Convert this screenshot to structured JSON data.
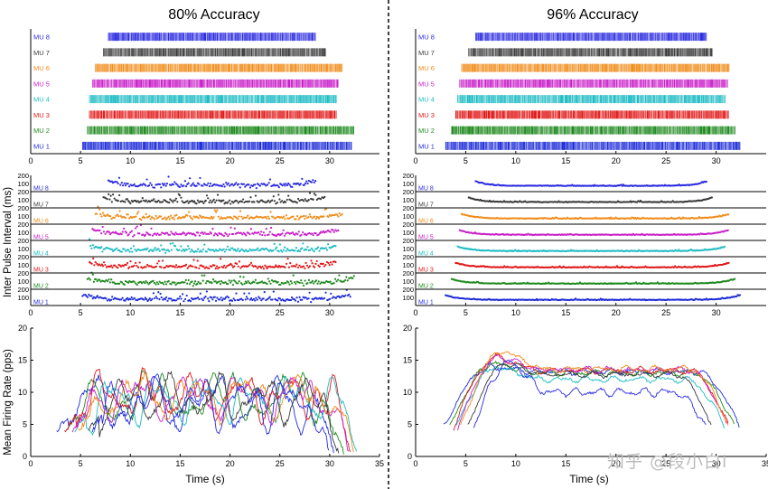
{
  "figure": {
    "divider_style": "dashed",
    "watermark": "知乎 @段小白i"
  },
  "colors": {
    "MU 1": "#1f2dd8",
    "MU 2": "#1f8a1f",
    "MU 3": "#e01818",
    "MU 4": "#1fbcc4",
    "MU 5": "#c81fc8",
    "MU 6": "#f08c1a",
    "MU 7": "#3a3a3a",
    "MU 8": "#2a2ae0"
  },
  "chart_data": [
    {
      "type": "raster",
      "panel": "left-top",
      "title": "80% Accuracy",
      "xlabel": "",
      "ylabel": "",
      "xlim": [
        0,
        35
      ],
      "xticks": [
        0,
        5,
        10,
        15,
        20,
        25,
        30
      ],
      "series": [
        {
          "name": "MU 1",
          "start": 5.2,
          "end": 32.2
        },
        {
          "name": "MU 2",
          "start": 5.7,
          "end": 32.5
        },
        {
          "name": "MU 3",
          "start": 5.9,
          "end": 30.7
        },
        {
          "name": "MU 4",
          "start": 5.9,
          "end": 30.7
        },
        {
          "name": "MU 5",
          "start": 6.2,
          "end": 30.9
        },
        {
          "name": "MU 6",
          "start": 6.5,
          "end": 31.3
        },
        {
          "name": "MU 7",
          "start": 7.3,
          "end": 29.6
        },
        {
          "name": "MU 8",
          "start": 7.8,
          "end": 28.6
        }
      ]
    },
    {
      "type": "raster",
      "panel": "right-top",
      "title": "96% Accuracy",
      "xlabel": "",
      "ylabel": "",
      "xlim": [
        0,
        35
      ],
      "xticks": [
        0,
        5,
        10,
        15,
        20,
        25,
        30
      ],
      "series": [
        {
          "name": "MU 1",
          "start": 3.0,
          "end": 32.4
        },
        {
          "name": "MU 2",
          "start": 3.6,
          "end": 31.9
        },
        {
          "name": "MU 3",
          "start": 4.0,
          "end": 31.3
        },
        {
          "name": "MU 4",
          "start": 4.2,
          "end": 30.9
        },
        {
          "name": "MU 5",
          "start": 4.4,
          "end": 31.2
        },
        {
          "name": "MU 6",
          "start": 4.6,
          "end": 31.3
        },
        {
          "name": "MU 7",
          "start": 5.3,
          "end": 29.6
        },
        {
          "name": "MU 8",
          "start": 6.0,
          "end": 29.1
        }
      ]
    },
    {
      "type": "scatter",
      "panel": "left-middle",
      "title": "",
      "xlabel": "",
      "ylabel": "Inter Pulse Interval (ms)",
      "xlim": [
        0,
        35
      ],
      "ylim_per_unit": [
        0,
        200
      ],
      "yticks_per_unit": [
        100,
        200
      ],
      "xticks": [
        0,
        5,
        10,
        15,
        20,
        25,
        30
      ],
      "series": [
        {
          "name": "MU 1",
          "start": 5.2,
          "end": 32.2,
          "baseline_ms": 80,
          "scatter_ms": 60
        },
        {
          "name": "MU 2",
          "start": 5.7,
          "end": 32.5,
          "baseline_ms": 80,
          "scatter_ms": 60
        },
        {
          "name": "MU 3",
          "start": 5.9,
          "end": 30.7,
          "baseline_ms": 80,
          "scatter_ms": 55
        },
        {
          "name": "MU 4",
          "start": 5.9,
          "end": 30.7,
          "baseline_ms": 80,
          "scatter_ms": 55
        },
        {
          "name": "MU 5",
          "start": 6.2,
          "end": 30.9,
          "baseline_ms": 80,
          "scatter_ms": 55
        },
        {
          "name": "MU 6",
          "start": 6.5,
          "end": 31.3,
          "baseline_ms": 80,
          "scatter_ms": 55
        },
        {
          "name": "MU 7",
          "start": 7.3,
          "end": 29.6,
          "baseline_ms": 80,
          "scatter_ms": 55
        },
        {
          "name": "MU 8",
          "start": 7.8,
          "end": 28.6,
          "baseline_ms": 80,
          "scatter_ms": 60
        }
      ]
    },
    {
      "type": "scatter",
      "panel": "right-middle",
      "title": "",
      "xlabel": "",
      "ylabel": "",
      "xlim": [
        0,
        35
      ],
      "ylim_per_unit": [
        0,
        200
      ],
      "yticks_per_unit": [
        100,
        200
      ],
      "xticks": [
        0,
        5,
        10,
        15,
        20,
        25,
        30
      ],
      "series": [
        {
          "name": "MU 1",
          "start": 3.0,
          "end": 32.4,
          "baseline_ms": 70,
          "scatter_ms": 8
        },
        {
          "name": "MU 2",
          "start": 3.6,
          "end": 31.9,
          "baseline_ms": 70,
          "scatter_ms": 8
        },
        {
          "name": "MU 3",
          "start": 4.0,
          "end": 31.3,
          "baseline_ms": 70,
          "scatter_ms": 8
        },
        {
          "name": "MU 4",
          "start": 4.2,
          "end": 30.9,
          "baseline_ms": 70,
          "scatter_ms": 8
        },
        {
          "name": "MU 5",
          "start": 4.4,
          "end": 31.2,
          "baseline_ms": 70,
          "scatter_ms": 8
        },
        {
          "name": "MU 6",
          "start": 4.6,
          "end": 31.3,
          "baseline_ms": 70,
          "scatter_ms": 8
        },
        {
          "name": "MU 7",
          "start": 5.3,
          "end": 29.6,
          "baseline_ms": 72,
          "scatter_ms": 8
        },
        {
          "name": "MU 8",
          "start": 6.0,
          "end": 29.1,
          "baseline_ms": 72,
          "scatter_ms": 8
        }
      ]
    },
    {
      "type": "line",
      "panel": "left-bottom",
      "title": "",
      "xlabel": "Time (s)",
      "ylabel": "Mean Firing Rate (pps)",
      "xlim": [
        0,
        35
      ],
      "ylim": [
        0,
        20
      ],
      "xticks": [
        0,
        5,
        10,
        15,
        20,
        25,
        30,
        35
      ],
      "yticks": [
        0,
        5,
        10,
        15,
        20
      ],
      "series": [
        {
          "name": "MU 1",
          "start": 2.6,
          "end": 30.5,
          "mean": 8.5,
          "fluctuation": 4.5
        },
        {
          "name": "MU 2",
          "start": 3.6,
          "end": 31.5,
          "mean": 9.0,
          "fluctuation": 4.5
        },
        {
          "name": "MU 3",
          "start": 3.4,
          "end": 32.2,
          "mean": 9.5,
          "fluctuation": 4.0
        },
        {
          "name": "MU 4",
          "start": 4.4,
          "end": 32.8,
          "mean": 9.0,
          "fluctuation": 4.0
        },
        {
          "name": "MU 5",
          "start": 4.2,
          "end": 32.0,
          "mean": 9.5,
          "fluctuation": 4.0
        },
        {
          "name": "MU 6",
          "start": 4.8,
          "end": 32.5,
          "mean": 9.5,
          "fluctuation": 4.0
        },
        {
          "name": "MU 7",
          "start": 5.8,
          "end": 31.0,
          "mean": 9.0,
          "fluctuation": 4.0
        },
        {
          "name": "MU 8",
          "start": 6.2,
          "end": 30.0,
          "mean": 8.5,
          "fluctuation": 4.5
        }
      ]
    },
    {
      "type": "line",
      "panel": "right-bottom",
      "title": "",
      "xlabel": "Time (s)",
      "ylabel": "",
      "xlim": [
        0,
        35
      ],
      "ylim": [
        0,
        20
      ],
      "xticks": [
        0,
        5,
        10,
        15,
        20,
        25,
        30,
        35
      ],
      "yticks": [
        0,
        5,
        10,
        15,
        20
      ],
      "series": [
        {
          "name": "MU 1",
          "start": 2.8,
          "end": 32.4,
          "plateau": 13.2,
          "peak": 14.0,
          "wiggle": 0.5
        },
        {
          "name": "MU 2",
          "start": 3.4,
          "end": 31.9,
          "plateau": 13.0,
          "peak": 14.5,
          "wiggle": 0.5
        },
        {
          "name": "MU 3",
          "start": 3.8,
          "end": 31.3,
          "plateau": 13.4,
          "peak": 15.5,
          "wiggle": 0.5
        },
        {
          "name": "MU 4",
          "start": 4.0,
          "end": 30.9,
          "plateau": 12.0,
          "peak": 14.0,
          "wiggle": 0.5
        },
        {
          "name": "MU 5",
          "start": 4.2,
          "end": 31.2,
          "plateau": 13.5,
          "peak": 15.5,
          "wiggle": 0.5
        },
        {
          "name": "MU 6",
          "start": 4.5,
          "end": 31.3,
          "plateau": 13.6,
          "peak": 16.5,
          "wiggle": 0.5
        },
        {
          "name": "MU 7",
          "start": 5.2,
          "end": 29.6,
          "plateau": 12.8,
          "peak": 14.5,
          "wiggle": 0.5
        },
        {
          "name": "MU 8",
          "start": 5.8,
          "end": 29.1,
          "plateau": 10.0,
          "peak": 14.8,
          "wiggle": 0.7
        }
      ]
    }
  ]
}
